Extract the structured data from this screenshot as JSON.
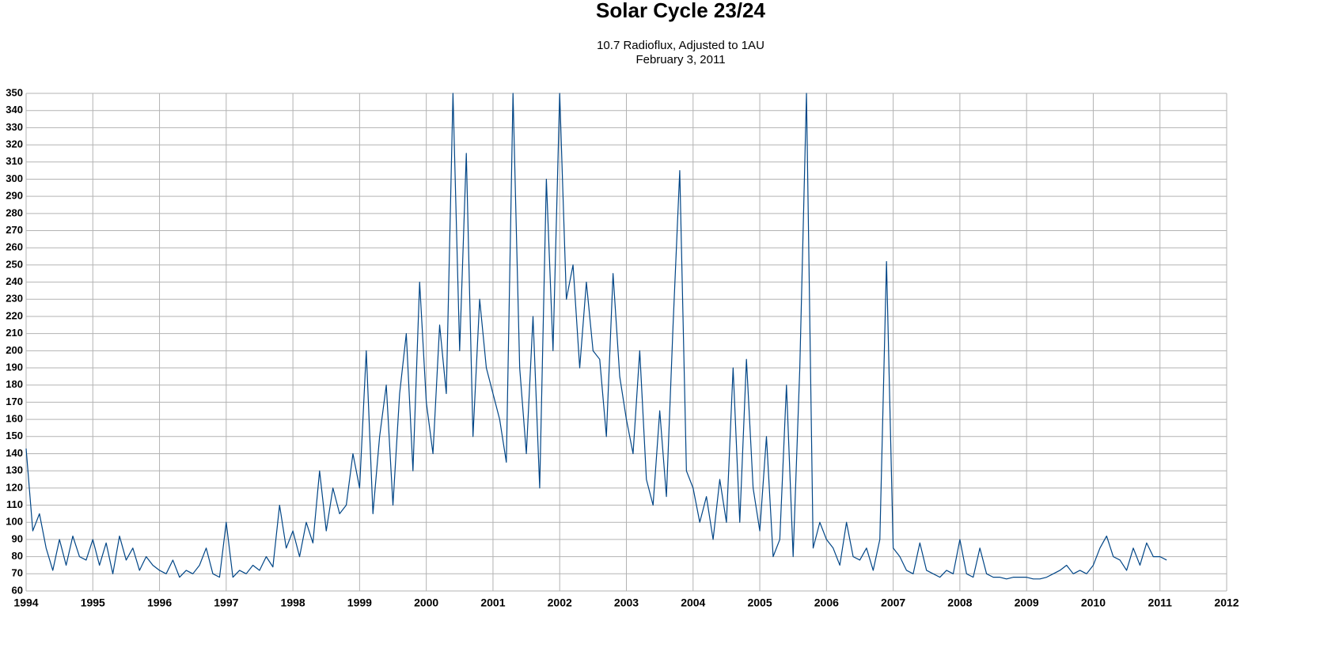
{
  "chart_data": {
    "type": "line",
    "title": "Solar Cycle 23/24",
    "subtitle": [
      "10.7 Radioflux, Adjusted to 1AU",
      "February 3, 2011"
    ],
    "color": "#004586",
    "grid": true,
    "x": [
      1994,
      1994.1,
      1994.2,
      1994.3,
      1994.4,
      1994.5,
      1994.6,
      1994.7,
      1994.8,
      1994.9,
      1995,
      1995.1,
      1995.2,
      1995.3,
      1995.4,
      1995.5,
      1995.6,
      1995.7,
      1995.8,
      1995.9,
      1996,
      1996.1,
      1996.2,
      1996.3,
      1996.4,
      1996.5,
      1996.6,
      1996.7,
      1996.8,
      1996.9,
      1997,
      1997.1,
      1997.2,
      1997.3,
      1997.4,
      1997.5,
      1997.6,
      1997.7,
      1997.8,
      1997.9,
      1998,
      1998.1,
      1998.2,
      1998.3,
      1998.4,
      1998.5,
      1998.6,
      1998.7,
      1998.8,
      1998.9,
      1999,
      1999.1,
      1999.2,
      1999.3,
      1999.4,
      1999.5,
      1999.6,
      1999.7,
      1999.8,
      1999.9,
      2000,
      2000.1,
      2000.2,
      2000.3,
      2000.4,
      2000.5,
      2000.6,
      2000.7,
      2000.8,
      2000.9,
      2001,
      2001.1,
      2001.2,
      2001.3,
      2001.4,
      2001.5,
      2001.6,
      2001.7,
      2001.8,
      2001.9,
      2002,
      2002.1,
      2002.2,
      2002.3,
      2002.4,
      2002.5,
      2002.6,
      2002.7,
      2002.8,
      2002.9,
      2003,
      2003.1,
      2003.2,
      2003.3,
      2003.4,
      2003.5,
      2003.6,
      2003.7,
      2003.8,
      2003.9,
      2004,
      2004.1,
      2004.2,
      2004.3,
      2004.4,
      2004.5,
      2004.6,
      2004.7,
      2004.8,
      2004.9,
      2005,
      2005.1,
      2005.2,
      2005.3,
      2005.4,
      2005.5,
      2005.6,
      2005.7,
      2005.8,
      2005.9,
      2006,
      2006.1,
      2006.2,
      2006.3,
      2006.4,
      2006.5,
      2006.6,
      2006.7,
      2006.8,
      2006.9,
      2007,
      2007.1,
      2007.2,
      2007.3,
      2007.4,
      2007.5,
      2007.6,
      2007.7,
      2007.8,
      2007.9,
      2008,
      2008.1,
      2008.2,
      2008.3,
      2008.4,
      2008.5,
      2008.6,
      2008.7,
      2008.8,
      2008.9,
      2009,
      2009.1,
      2009.2,
      2009.3,
      2009.4,
      2009.5,
      2009.6,
      2009.7,
      2009.8,
      2009.9,
      2010,
      2010.1,
      2010.2,
      2010.3,
      2010.4,
      2010.5,
      2010.6,
      2010.7,
      2010.8,
      2010.9,
      2011,
      2011.1
    ],
    "values": [
      143,
      95,
      105,
      85,
      72,
      90,
      75,
      92,
      80,
      78,
      90,
      75,
      88,
      70,
      92,
      78,
      85,
      72,
      80,
      75,
      72,
      70,
      78,
      68,
      72,
      70,
      75,
      85,
      70,
      68,
      100,
      68,
      72,
      70,
      75,
      72,
      80,
      74,
      110,
      85,
      95,
      80,
      100,
      88,
      130,
      95,
      120,
      105,
      110,
      140,
      120,
      200,
      105,
      150,
      180,
      110,
      175,
      210,
      130,
      240,
      170,
      140,
      215,
      175,
      350,
      200,
      315,
      150,
      230,
      190,
      175,
      160,
      135,
      350,
      190,
      140,
      220,
      120,
      300,
      200,
      350,
      230,
      250,
      190,
      240,
      200,
      195,
      150,
      245,
      185,
      160,
      140,
      200,
      125,
      110,
      165,
      115,
      215,
      305,
      130,
      120,
      100,
      115,
      90,
      125,
      100,
      190,
      100,
      195,
      120,
      95,
      150,
      80,
      90,
      180,
      80,
      190,
      350,
      85,
      100,
      90,
      85,
      75,
      100,
      80,
      78,
      85,
      72,
      90,
      252,
      85,
      80,
      72,
      70,
      88,
      72,
      70,
      68,
      72,
      70,
      90,
      70,
      68,
      85,
      70,
      68,
      68,
      67,
      68,
      68,
      68,
      67,
      67,
      68,
      70,
      72,
      75,
      70,
      72,
      70,
      75,
      85,
      92,
      80,
      78,
      72,
      85,
      75,
      88,
      80,
      80,
      78
    ],
    "xlim": [
      1994,
      2012
    ],
    "xticks": [
      1994,
      1995,
      1996,
      1997,
      1998,
      1999,
      2000,
      2001,
      2002,
      2003,
      2004,
      2005,
      2006,
      2007,
      2008,
      2009,
      2010,
      2011,
      2012
    ],
    "ylim": [
      60,
      350
    ],
    "yticks": [
      60,
      70,
      80,
      90,
      100,
      110,
      120,
      130,
      140,
      150,
      160,
      170,
      180,
      190,
      200,
      210,
      220,
      230,
      240,
      250,
      260,
      270,
      280,
      290,
      300,
      310,
      320,
      330,
      340,
      350
    ]
  }
}
